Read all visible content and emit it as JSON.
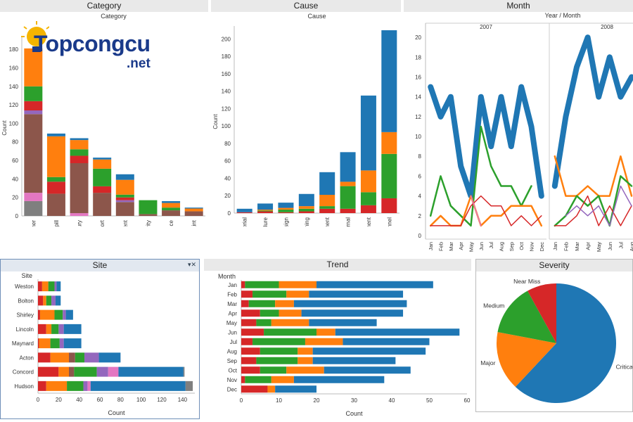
{
  "colors": {
    "blue": "#1f77b4",
    "orange": "#ff7f0e",
    "green": "#2ca02c",
    "red": "#d62728",
    "purple": "#9467bd",
    "brown": "#8c564b",
    "pink": "#e377c2",
    "gray": "#7f7f7f"
  },
  "logo": {
    "main": "Topcongcu",
    "sub": ".net",
    "icon": "lightbulb-icon"
  },
  "panels": {
    "category": "Category",
    "cause": "Cause",
    "month": "Month",
    "site": "Site",
    "trend": "Trend",
    "severity": "Severity"
  },
  "chart_data": [
    {
      "id": "category",
      "type": "bar",
      "stacked": true,
      "title": "Category",
      "xlabel": "Category",
      "ylabel": "Count",
      "ylim": [
        0,
        190
      ],
      "yticks": [
        0,
        20,
        40,
        60,
        80,
        100,
        120,
        140,
        160,
        180
      ],
      "categories": [
        "Customer",
        "Spill",
        "Injury",
        "Transport",
        "Equipment",
        "Security",
        "Divergence",
        "Complaint"
      ],
      "series": [
        {
          "color": "gray",
          "values": [
            16,
            0,
            0,
            0,
            0,
            0,
            0,
            0
          ]
        },
        {
          "color": "pink",
          "values": [
            9,
            0,
            3,
            0,
            0,
            0,
            0,
            0
          ]
        },
        {
          "color": "brown",
          "values": [
            85,
            24,
            54,
            25,
            15,
            2,
            6,
            5
          ]
        },
        {
          "color": "purple",
          "values": [
            4,
            0,
            0,
            0,
            2,
            0,
            0,
            0
          ]
        },
        {
          "color": "red",
          "values": [
            10,
            13,
            8,
            7,
            3,
            0,
            0,
            0
          ]
        },
        {
          "color": "green",
          "values": [
            16,
            5,
            7,
            19,
            3,
            15,
            3,
            0
          ]
        },
        {
          "color": "orange",
          "values": [
            41,
            44,
            10,
            10,
            16,
            0,
            5,
            3
          ]
        },
        {
          "color": "blue",
          "values": [
            0,
            3,
            2,
            2,
            6,
            0,
            2,
            1
          ]
        }
      ]
    },
    {
      "id": "cause",
      "type": "bar",
      "stacked": true,
      "title": "Cause",
      "xlabel": "Cause",
      "ylabel": "Count",
      "ylim": [
        0,
        210
      ],
      "yticks": [
        0,
        20,
        40,
        60,
        80,
        100,
        120,
        140,
        160,
        180,
        200
      ],
      "categories": [
        "Material",
        "Procedure",
        "Design",
        "Training",
        "Management",
        "External",
        "Equipment",
        "Personnel"
      ],
      "series": [
        {
          "color": "red",
          "values": [
            1,
            2,
            1,
            2,
            5,
            5,
            9,
            17
          ]
        },
        {
          "color": "green",
          "values": [
            0,
            1,
            3,
            3,
            3,
            26,
            15,
            51
          ]
        },
        {
          "color": "orange",
          "values": [
            0,
            1,
            2,
            3,
            13,
            5,
            25,
            25
          ]
        },
        {
          "color": "blue",
          "values": [
            4,
            7,
            6,
            14,
            26,
            34,
            86,
            117
          ]
        }
      ]
    },
    {
      "id": "month",
      "type": "line",
      "title": "Month",
      "xlabel": "Year / Month",
      "ylabel": "",
      "ylim": [
        0,
        21
      ],
      "yticks": [
        0,
        2,
        4,
        6,
        8,
        10,
        12,
        14,
        16,
        18,
        20
      ],
      "facets": [
        "2007",
        "2008"
      ],
      "months": [
        "Jan",
        "Feb",
        "Mar",
        "Apr",
        "May",
        "Jun",
        "Jul",
        "Aug",
        "Sep",
        "Oct",
        "Nov",
        "Dec"
      ],
      "series": [
        {
          "facet": "2007",
          "color": "blue",
          "width": 8,
          "values": [
            15,
            12,
            14,
            7,
            4,
            14,
            9,
            14,
            9,
            15,
            11,
            4
          ]
        },
        {
          "facet": "2007",
          "color": "green",
          "width": 2.5,
          "values": [
            2,
            6,
            3,
            2,
            1,
            11,
            7,
            5,
            5,
            3,
            5,
            null
          ]
        },
        {
          "facet": "2007",
          "color": "orange",
          "width": 2.5,
          "values": [
            1,
            2,
            1,
            1,
            4,
            1,
            2,
            2,
            3,
            3,
            3,
            1
          ]
        },
        {
          "facet": "2007",
          "color": "red",
          "width": 1.5,
          "values": [
            1,
            1,
            1,
            1,
            3,
            4,
            3,
            3,
            1,
            2,
            1,
            2
          ]
        },
        {
          "facet": "2007",
          "color": "pink",
          "width": 1.5,
          "values": [
            null,
            null,
            null,
            null,
            4,
            1,
            null,
            null,
            null,
            null,
            null,
            null
          ]
        },
        {
          "facet": "2008",
          "color": "blue",
          "width": 8,
          "values": [
            5,
            12,
            17,
            20,
            14,
            18,
            14,
            16
          ]
        },
        {
          "facet": "2008",
          "color": "orange",
          "width": 2.5,
          "values": [
            8,
            4,
            4,
            5,
            4,
            4,
            8,
            4
          ]
        },
        {
          "facet": "2008",
          "color": "green",
          "width": 2.5,
          "values": [
            1,
            2,
            4,
            3,
            4,
            1,
            6,
            5
          ]
        },
        {
          "facet": "2008",
          "color": "red",
          "width": 1.5,
          "values": [
            1,
            1,
            2,
            4,
            1,
            3,
            1,
            3
          ]
        },
        {
          "facet": "2008",
          "color": "purple",
          "width": 1.5,
          "values": [
            null,
            2,
            3,
            2,
            3,
            1,
            5,
            3
          ]
        }
      ]
    },
    {
      "id": "site",
      "type": "bar",
      "orientation": "horizontal",
      "stacked": true,
      "title": "Site",
      "xlabel": "Count",
      "ylabel": "Site",
      "xlim": [
        0,
        152
      ],
      "xticks": [
        0,
        20,
        40,
        60,
        80,
        100,
        120,
        140
      ],
      "categories": [
        "Weston",
        "Bolton",
        "Shirley",
        "Lincoln",
        "Maynard",
        "Acton",
        "Concord",
        "Hudson"
      ],
      "series": [
        {
          "color": "red",
          "values": [
            4,
            5,
            2,
            8,
            1,
            12,
            20,
            8
          ]
        },
        {
          "color": "orange",
          "values": [
            6,
            3,
            14,
            5,
            11,
            18,
            10,
            20
          ]
        },
        {
          "color": "brown",
          "values": [
            0,
            0,
            0,
            0,
            0,
            6,
            5,
            0
          ]
        },
        {
          "color": "green",
          "values": [
            6,
            5,
            8,
            7,
            9,
            9,
            22,
            16
          ]
        },
        {
          "color": "purple",
          "values": [
            2,
            4,
            3,
            5,
            4,
            14,
            11,
            4
          ]
        },
        {
          "color": "pink",
          "values": [
            0,
            0,
            0,
            0,
            0,
            0,
            10,
            3
          ]
        },
        {
          "color": "blue",
          "values": [
            4,
            5,
            7,
            17,
            17,
            21,
            63,
            92
          ]
        },
        {
          "color": "gray",
          "values": [
            0,
            0,
            0,
            0,
            0,
            0,
            1,
            7
          ]
        }
      ]
    },
    {
      "id": "trend",
      "type": "bar",
      "orientation": "horizontal",
      "stacked": true,
      "title": "Trend",
      "xlabel": "Count",
      "ylabel": "Month",
      "xlim": [
        0,
        60
      ],
      "xticks": [
        0,
        10,
        20,
        30,
        40,
        50,
        60
      ],
      "categories": [
        "Jan",
        "Feb",
        "Mar",
        "Apr",
        "May",
        "Jun",
        "Jul",
        "Aug",
        "Sep",
        "Oct",
        "Nov",
        "Dec"
      ],
      "series": [
        {
          "color": "red",
          "values": [
            1,
            3,
            2,
            5,
            4,
            6,
            3,
            5,
            4,
            5,
            1,
            7
          ]
        },
        {
          "color": "green",
          "values": [
            9,
            9,
            7,
            5,
            4,
            14,
            14,
            10,
            11,
            7,
            7,
            0
          ]
        },
        {
          "color": "orange",
          "values": [
            10,
            6,
            5,
            6,
            10,
            5,
            10,
            4,
            4,
            10,
            6,
            2
          ]
        },
        {
          "color": "blue",
          "values": [
            31,
            25,
            30,
            27,
            18,
            33,
            23,
            30,
            22,
            23,
            24,
            11
          ]
        }
      ]
    },
    {
      "id": "severity",
      "type": "pie",
      "title": "Severity",
      "slices": [
        {
          "label": "Critical",
          "value": 62,
          "color": "blue"
        },
        {
          "label": "Major",
          "value": 16,
          "color": "orange"
        },
        {
          "label": "Medium",
          "value": 14,
          "color": "green"
        },
        {
          "label": "Near Miss",
          "value": 8,
          "color": "red"
        }
      ]
    }
  ]
}
